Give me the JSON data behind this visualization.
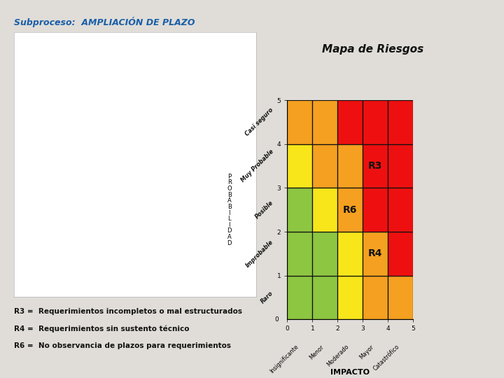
{
  "title": "Subproceso:  AMPLIACIÓN DE PLAZO",
  "map_title": "Mapa de Riesgos",
  "bg_color": "#e0ddd8",
  "panel_bg": "#f5f5f0",
  "title_color": "#1a5fa8",
  "grid_colors_bottom_to_top": [
    [
      "#8dc641",
      "#8dc641",
      "#f8e61b",
      "#f5a020",
      "#f5a020"
    ],
    [
      "#8dc641",
      "#8dc641",
      "#f8e61b",
      "#f5a020",
      "#ee1010"
    ],
    [
      "#8dc641",
      "#f8e61b",
      "#f5a020",
      "#ee1010",
      "#ee1010"
    ],
    [
      "#f8e61b",
      "#f5a020",
      "#f5a020",
      "#ee1010",
      "#ee1010"
    ],
    [
      "#f5a020",
      "#f5a020",
      "#ee1010",
      "#ee1010",
      "#ee1010"
    ]
  ],
  "y_labels_bottom_to_top": [
    "Raro",
    "Improbable",
    "Posible",
    "Muy Probable",
    "Casi seguro"
  ],
  "x_labels": [
    "Insignificante",
    "Menor",
    "Moderado",
    "Mayor",
    "Catastrófico"
  ],
  "xlabel": "IMPACTO",
  "ylabel_chars": "PROBABILIDAD",
  "risks": [
    {
      "label": "R3",
      "col": 3,
      "row": 3
    },
    {
      "label": "R4",
      "col": 3,
      "row": 1
    },
    {
      "label": "R6",
      "col": 2,
      "row": 2
    }
  ],
  "legend_lines": [
    "R3 =  Requerimientos incompletos o mal estructurados",
    "R4 =  Requerimientos sin sustento técnico",
    "R6 =  No observancia de plazos para requerimientos"
  ],
  "legend_fontsize": 7.5,
  "risk_fontsize": 10
}
